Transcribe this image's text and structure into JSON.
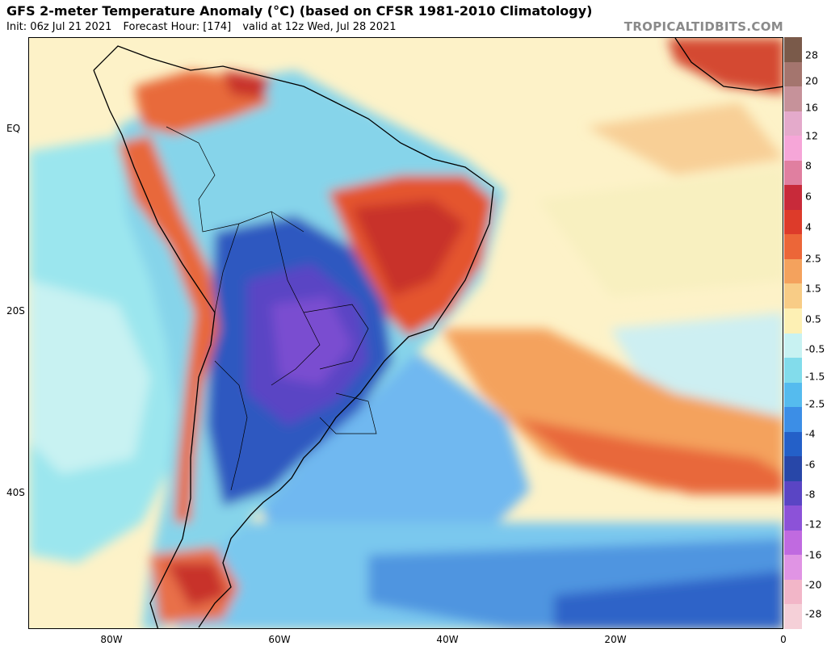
{
  "header": {
    "title": "GFS 2-meter Temperature Anomaly (°C) (based on CFSR 1981-2010 Climatology)",
    "init": "Init: 06z Jul 21 2021",
    "forecast_hour": "Forecast Hour: [174]",
    "valid": "valid at 12z Wed, Jul 28 2021",
    "brand": "TROPICALTIDBITS.COM"
  },
  "axes": {
    "lat_labels": [
      "EQ",
      "20S",
      "40S"
    ],
    "lon_labels": [
      "80W",
      "60W",
      "40W",
      "20W",
      "0"
    ]
  },
  "colorbar": {
    "labels": [
      "28",
      "20",
      "16",
      "12",
      "8",
      "6",
      "4",
      "2.5",
      "1.5",
      "0.5",
      "-0.5",
      "-1.5",
      "-2.5",
      "-4",
      "-6",
      "-8",
      "-12",
      "-16",
      "-20",
      "-28"
    ],
    "colors": [
      "#7a5a4a",
      "#a4756e",
      "#c6929a",
      "#e4aacb",
      "#f6a6d8",
      "#e07fa0",
      "#c82a3a",
      "#dd3b2a",
      "#ec6638",
      "#f4a25d",
      "#f8cc86",
      "#fdf0b4",
      "#c8f2f2",
      "#82dceb",
      "#55bbee",
      "#3c8ee6",
      "#2460c8",
      "#2847a8",
      "#5a45c4",
      "#8c52d8",
      "#c06ae0",
      "#e094e4",
      "#f2b6c8",
      "#f5d0d8"
    ]
  },
  "colors": {
    "background": "#ffffff",
    "brand_text": "#8a8a8a",
    "ocean_base": "#fef6d6",
    "warm_anomaly": "#e4542e",
    "cold_anomaly": "#2847a8",
    "purple_anomaly": "#7a4ed0"
  }
}
